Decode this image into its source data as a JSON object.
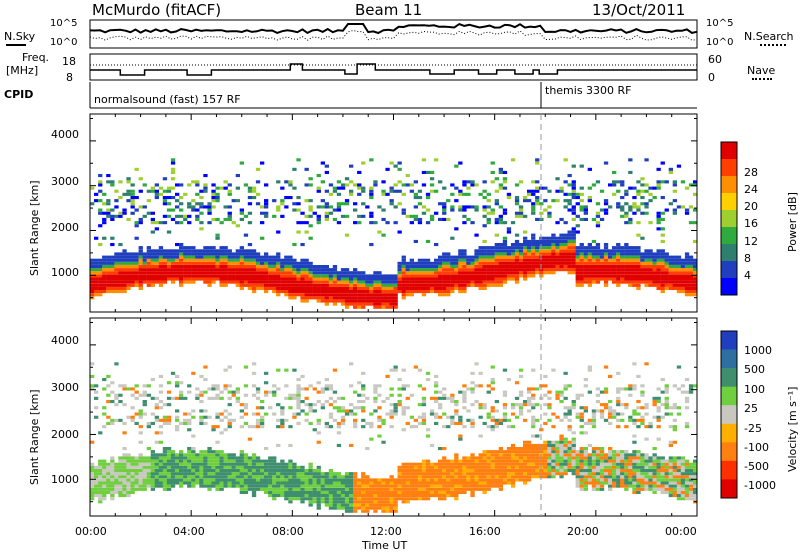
{
  "header": {
    "station": "McMurdo (fitACF)",
    "beam": "Beam 11",
    "date": "13/Oct/2011"
  },
  "top_panels": {
    "nsky_label": "N.Sky",
    "nsky_ticks": [
      "10^5",
      "10^0"
    ],
    "nsearch_label": "N.Search",
    "nsearch_ticks": [
      "10^5",
      "10^0"
    ],
    "freq_label_1": "Freq.",
    "freq_label_2": "[MHz]",
    "freq_ticks": [
      "18",
      "8"
    ],
    "nave_label": "Nave",
    "nave_ticks": [
      "60",
      "0"
    ],
    "cpid_label": "CPID",
    "cpid_segments": [
      "normalsound (fast) 157 RF",
      "themis 3300 RF"
    ]
  },
  "power_panel": {
    "ylabel": "Slant Range [km]",
    "yticks": [
      "4000",
      "3000",
      "2000",
      "1000"
    ],
    "colorbar_label": "Power [dB]",
    "colorbar_ticks": [
      "28",
      "24",
      "20",
      "16",
      "12",
      "8",
      "4"
    ],
    "colors": [
      "#0000ff",
      "#1f3fbf",
      "#2f7f6f",
      "#2faa3f",
      "#9fcf2f",
      "#ffcf00",
      "#ff8f00",
      "#ff3f00",
      "#e00000"
    ]
  },
  "velocity_panel": {
    "ylabel": "Slant Range [km]",
    "yticks": [
      "4000",
      "3000",
      "2000",
      "1000"
    ],
    "colorbar_label": "Velocity [m s⁻¹]",
    "colorbar_ticks": [
      "1000",
      "500",
      "100",
      "25",
      "-25",
      "-100",
      "-500",
      "-1000"
    ],
    "colors": [
      "#1f3fbf",
      "#2f6f9f",
      "#3f8f6f",
      "#6fcf3f",
      "#c8c8c0",
      "#ffaf00",
      "#ff7f10",
      "#ff3000",
      "#e00000"
    ]
  },
  "x_axis": {
    "ticks": [
      "00:00",
      "04:00",
      "08:00",
      "12:00",
      "16:00",
      "20:00",
      "00:00"
    ],
    "label": "Time UT"
  },
  "chart_data": {
    "type": "heatmap",
    "title": "McMurdo (fitACF) Beam 11 13/Oct/2011",
    "xlabel": "Time UT",
    "ylabel": "Slant Range [km]",
    "xlim": [
      "00:00",
      "00:00"
    ],
    "ylim": [
      180,
      4600
    ],
    "panels": [
      {
        "name": "Power",
        "unit": "dB",
        "colorbar_ticks": [
          4,
          8,
          12,
          16,
          20,
          24,
          28
        ]
      },
      {
        "name": "Velocity",
        "unit": "m s^-1",
        "colorbar_ticks": [
          -1000,
          -500,
          -100,
          -25,
          25,
          100,
          500,
          1000
        ]
      }
    ],
    "cpid_change_time": "18:00"
  }
}
